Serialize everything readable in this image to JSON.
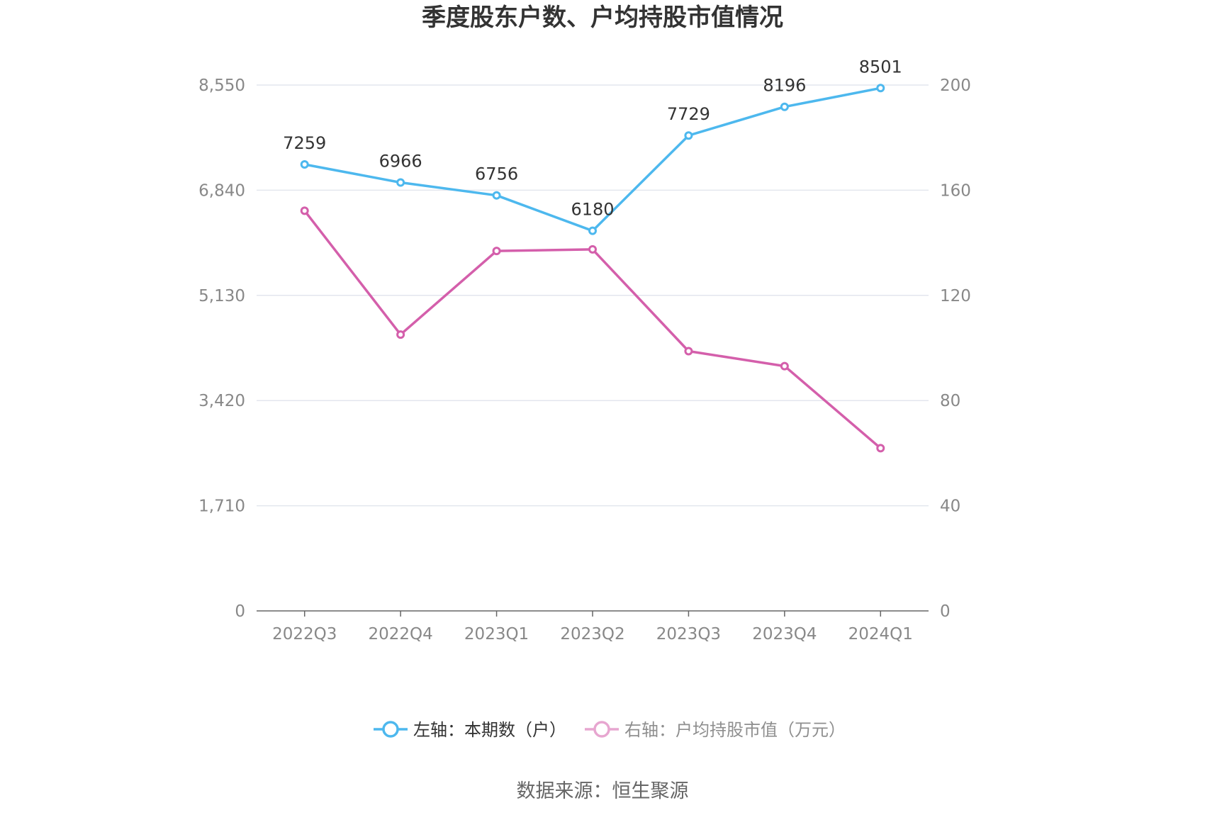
{
  "chart_data": {
    "type": "line",
    "title": "季度股东户数、户均持股市值情况",
    "categories": [
      "2022Q3",
      "2022Q4",
      "2023Q1",
      "2023Q2",
      "2023Q3",
      "2023Q4",
      "2024Q1"
    ],
    "series": [
      {
        "name": "左轴：本期数（户）",
        "axis": "left",
        "color": "#4db8ee",
        "values": [
          7259,
          6966,
          6756,
          6180,
          7729,
          8196,
          8501
        ],
        "data_labels": [
          "7259",
          "6966",
          "6756",
          "6180",
          "7729",
          "8196",
          "8501"
        ]
      },
      {
        "name": "右轴：户均持股市值（万元）",
        "axis": "right",
        "color": "#d45fab",
        "values": [
          152.2,
          105.1,
          136.9,
          137.5,
          98.8,
          93.1,
          61.9
        ]
      }
    ],
    "y_left": {
      "range": [
        0,
        8550
      ],
      "ticks": [
        0,
        1710,
        3420,
        5130,
        6840,
        8550
      ],
      "tick_labels": [
        "0",
        "1,710",
        "3,420",
        "5,130",
        "6,840",
        "8,550"
      ]
    },
    "y_right": {
      "range": [
        0,
        200
      ],
      "ticks": [
        0,
        40,
        80,
        120,
        160,
        200
      ],
      "tick_labels": [
        "0",
        "40",
        "80",
        "120",
        "160",
        "200"
      ]
    },
    "grid": true,
    "legend_position": "bottom"
  },
  "source": "数据来源：恒生聚源"
}
